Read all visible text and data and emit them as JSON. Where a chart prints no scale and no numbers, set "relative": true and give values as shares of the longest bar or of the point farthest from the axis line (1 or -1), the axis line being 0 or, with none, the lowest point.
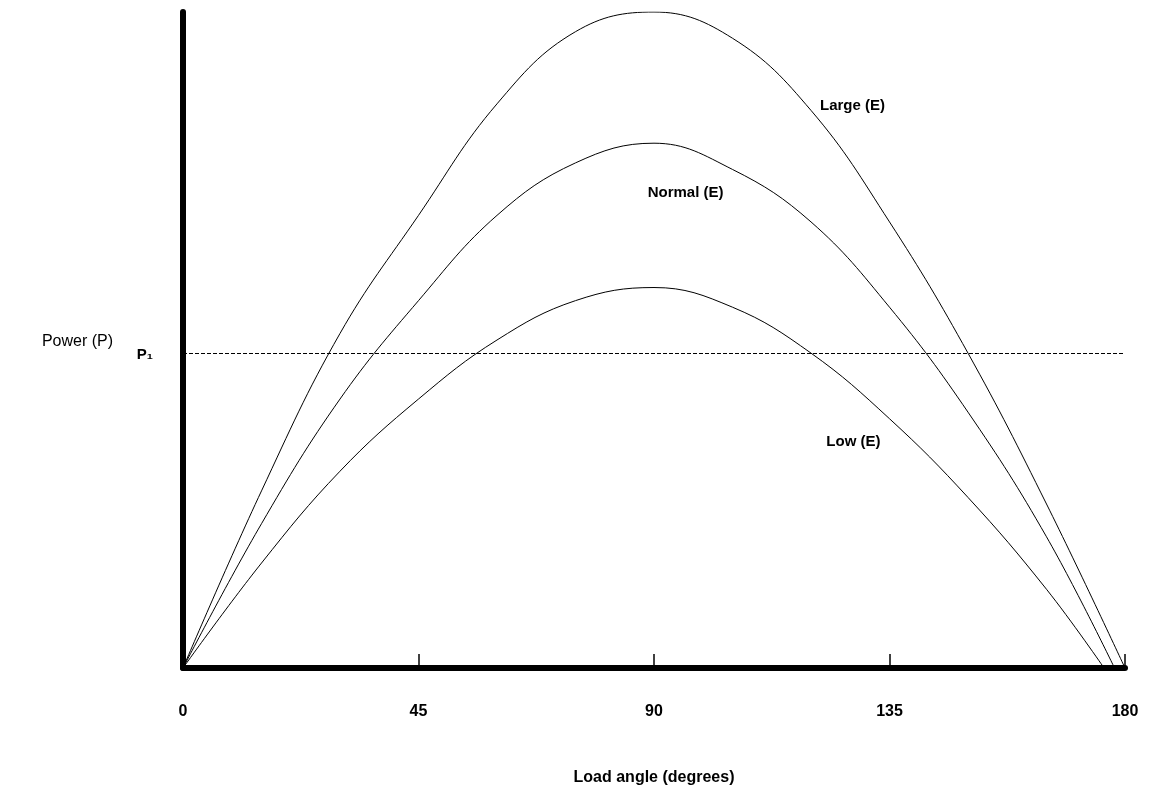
{
  "chart_data": {
    "type": "line",
    "xlabel": "Load angle (degrees)",
    "ylabel": "Power (P)",
    "relative": true,
    "xlim": [
      0,
      180
    ],
    "xticks": [
      0,
      45,
      90,
      135,
      180
    ],
    "series": [
      {
        "name": "Large (E)",
        "color": "#000000",
        "x": [
          0,
          15,
          30,
          45,
          60,
          75,
          90,
          105,
          120,
          135,
          150,
          165,
          180
        ],
        "values": [
          0,
          0.27,
          0.51,
          0.69,
          0.86,
          0.97,
          1,
          0.96,
          0.85,
          0.68,
          0.48,
          0.25,
          0
        ]
      },
      {
        "name": "Normal (E)",
        "color": "#000000",
        "x": [
          0,
          15,
          30,
          45,
          60,
          75,
          90,
          105,
          120,
          135,
          150,
          165,
          178
        ],
        "values": [
          0,
          0.22,
          0.41,
          0.56,
          0.69,
          0.77,
          0.8,
          0.76,
          0.68,
          0.55,
          0.39,
          0.2,
          0
        ]
      },
      {
        "name": "Low (E)",
        "color": "#000000",
        "x": [
          0,
          15,
          30,
          45,
          60,
          75,
          90,
          105,
          120,
          135,
          150,
          165,
          176
        ],
        "values": [
          0,
          0.16,
          0.3,
          0.41,
          0.5,
          0.56,
          0.58,
          0.55,
          0.48,
          0.38,
          0.26,
          0.12,
          0
        ]
      }
    ],
    "ref_lines": [
      {
        "axis": "y",
        "value": 0.48,
        "label": "P₁",
        "color": "#000000",
        "line_style": "dashed"
      }
    ],
    "legend": false,
    "marker": "none",
    "line_style": "solid",
    "grid": false
  }
}
